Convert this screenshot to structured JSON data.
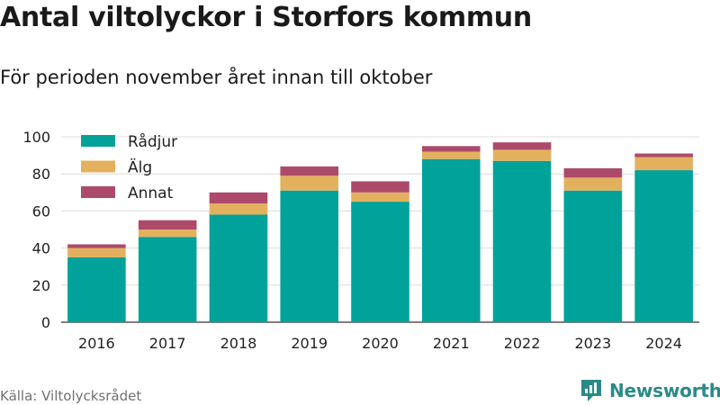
{
  "header": {
    "title": "Antal viltolyckor i Storfors kommun",
    "subtitle": "För perioden november året innan till oktober"
  },
  "footer": {
    "source": "Källa: Viltolycksrådet",
    "brand": "Newsworthy"
  },
  "colors": {
    "radjur": "#00a29a",
    "alg": "#e3b15e",
    "annat": "#ad4a6b",
    "grid": "#dcdcdc",
    "brand": "#2a8a86"
  },
  "icons": {
    "brand_logo": "newsworthy-logo-icon"
  },
  "chart_data": {
    "type": "bar",
    "stacked": true,
    "categories": [
      "2016",
      "2017",
      "2018",
      "2019",
      "2020",
      "2021",
      "2022",
      "2023",
      "2024"
    ],
    "series": [
      {
        "name": "Rådjur",
        "values": [
          35,
          46,
          58,
          71,
          65,
          88,
          87,
          71,
          82
        ]
      },
      {
        "name": "Älg",
        "values": [
          5,
          4,
          6,
          8,
          5,
          4,
          6,
          7,
          7
        ]
      },
      {
        "name": "Annat",
        "values": [
          2,
          5,
          6,
          5,
          6,
          3,
          4,
          5,
          2
        ]
      }
    ],
    "yticks": [
      0,
      20,
      40,
      60,
      80,
      100
    ],
    "ylim": [
      0,
      100
    ],
    "grid": true,
    "legend": "top-left"
  }
}
